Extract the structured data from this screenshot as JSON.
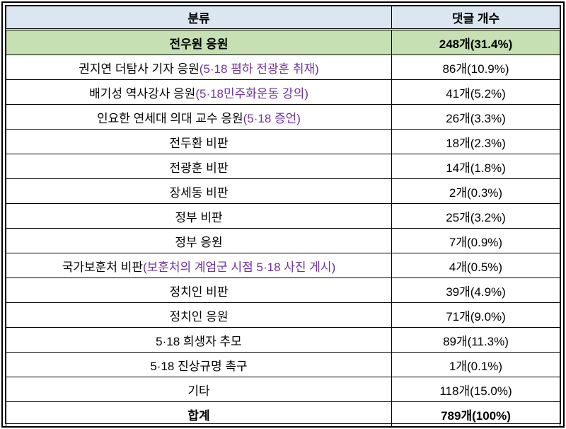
{
  "headers": {
    "category": "분류",
    "count": "댓글 개수"
  },
  "rows": [
    {
      "category": "전우원 응원",
      "note": "",
      "count": "248개(31.4%)"
    },
    {
      "category": "권지연 더탐사 기자 응원",
      "note": "(5·18 폄하 전광훈 취재)",
      "count": "86개(10.9%)"
    },
    {
      "category": "배기성 역사강사 응원",
      "note": "(5·18민주화운동 강의)",
      "count": "41개(5.2%)"
    },
    {
      "category": "인요한 연세대 의대 교수 응원",
      "note": "(5·18 증언)",
      "count": "26개(3.3%)"
    },
    {
      "category": "전두환 비판",
      "note": "",
      "count": "18개(2.3%)"
    },
    {
      "category": "전광훈 비판",
      "note": "",
      "count": "14개(1.8%)"
    },
    {
      "category": "장세동 비판",
      "note": "",
      "count": "2개(0.3%)"
    },
    {
      "category": "정부 비판",
      "note": "",
      "count": "25개(3.2%)"
    },
    {
      "category": "정부 응원",
      "note": "",
      "count": "7개(0.9%)"
    },
    {
      "category": "국가보훈처 비판",
      "note": "(보훈처의 계엄군 시점 5·18 사진 게시)",
      "count": "4개(0.5%)"
    },
    {
      "category": "정치인 비판",
      "note": "",
      "count": "39개(4.9%)"
    },
    {
      "category": "정치인 응원",
      "note": "",
      "count": "71개(9.0%)"
    },
    {
      "category": "5·18 희생자 추모",
      "note": "",
      "count": "89개(11.3%)"
    },
    {
      "category": "5·18 진상규명 촉구",
      "note": "",
      "count": "1개(0.1%)"
    },
    {
      "category": "기타",
      "note": "",
      "count": "118개(15.0%)"
    }
  ],
  "total": {
    "category": "합계",
    "count": "789개(100%)"
  },
  "colors": {
    "header_bg": "#dce6f1",
    "highlight_bg": "#c6e0b4",
    "note_text": "#7030a0"
  }
}
